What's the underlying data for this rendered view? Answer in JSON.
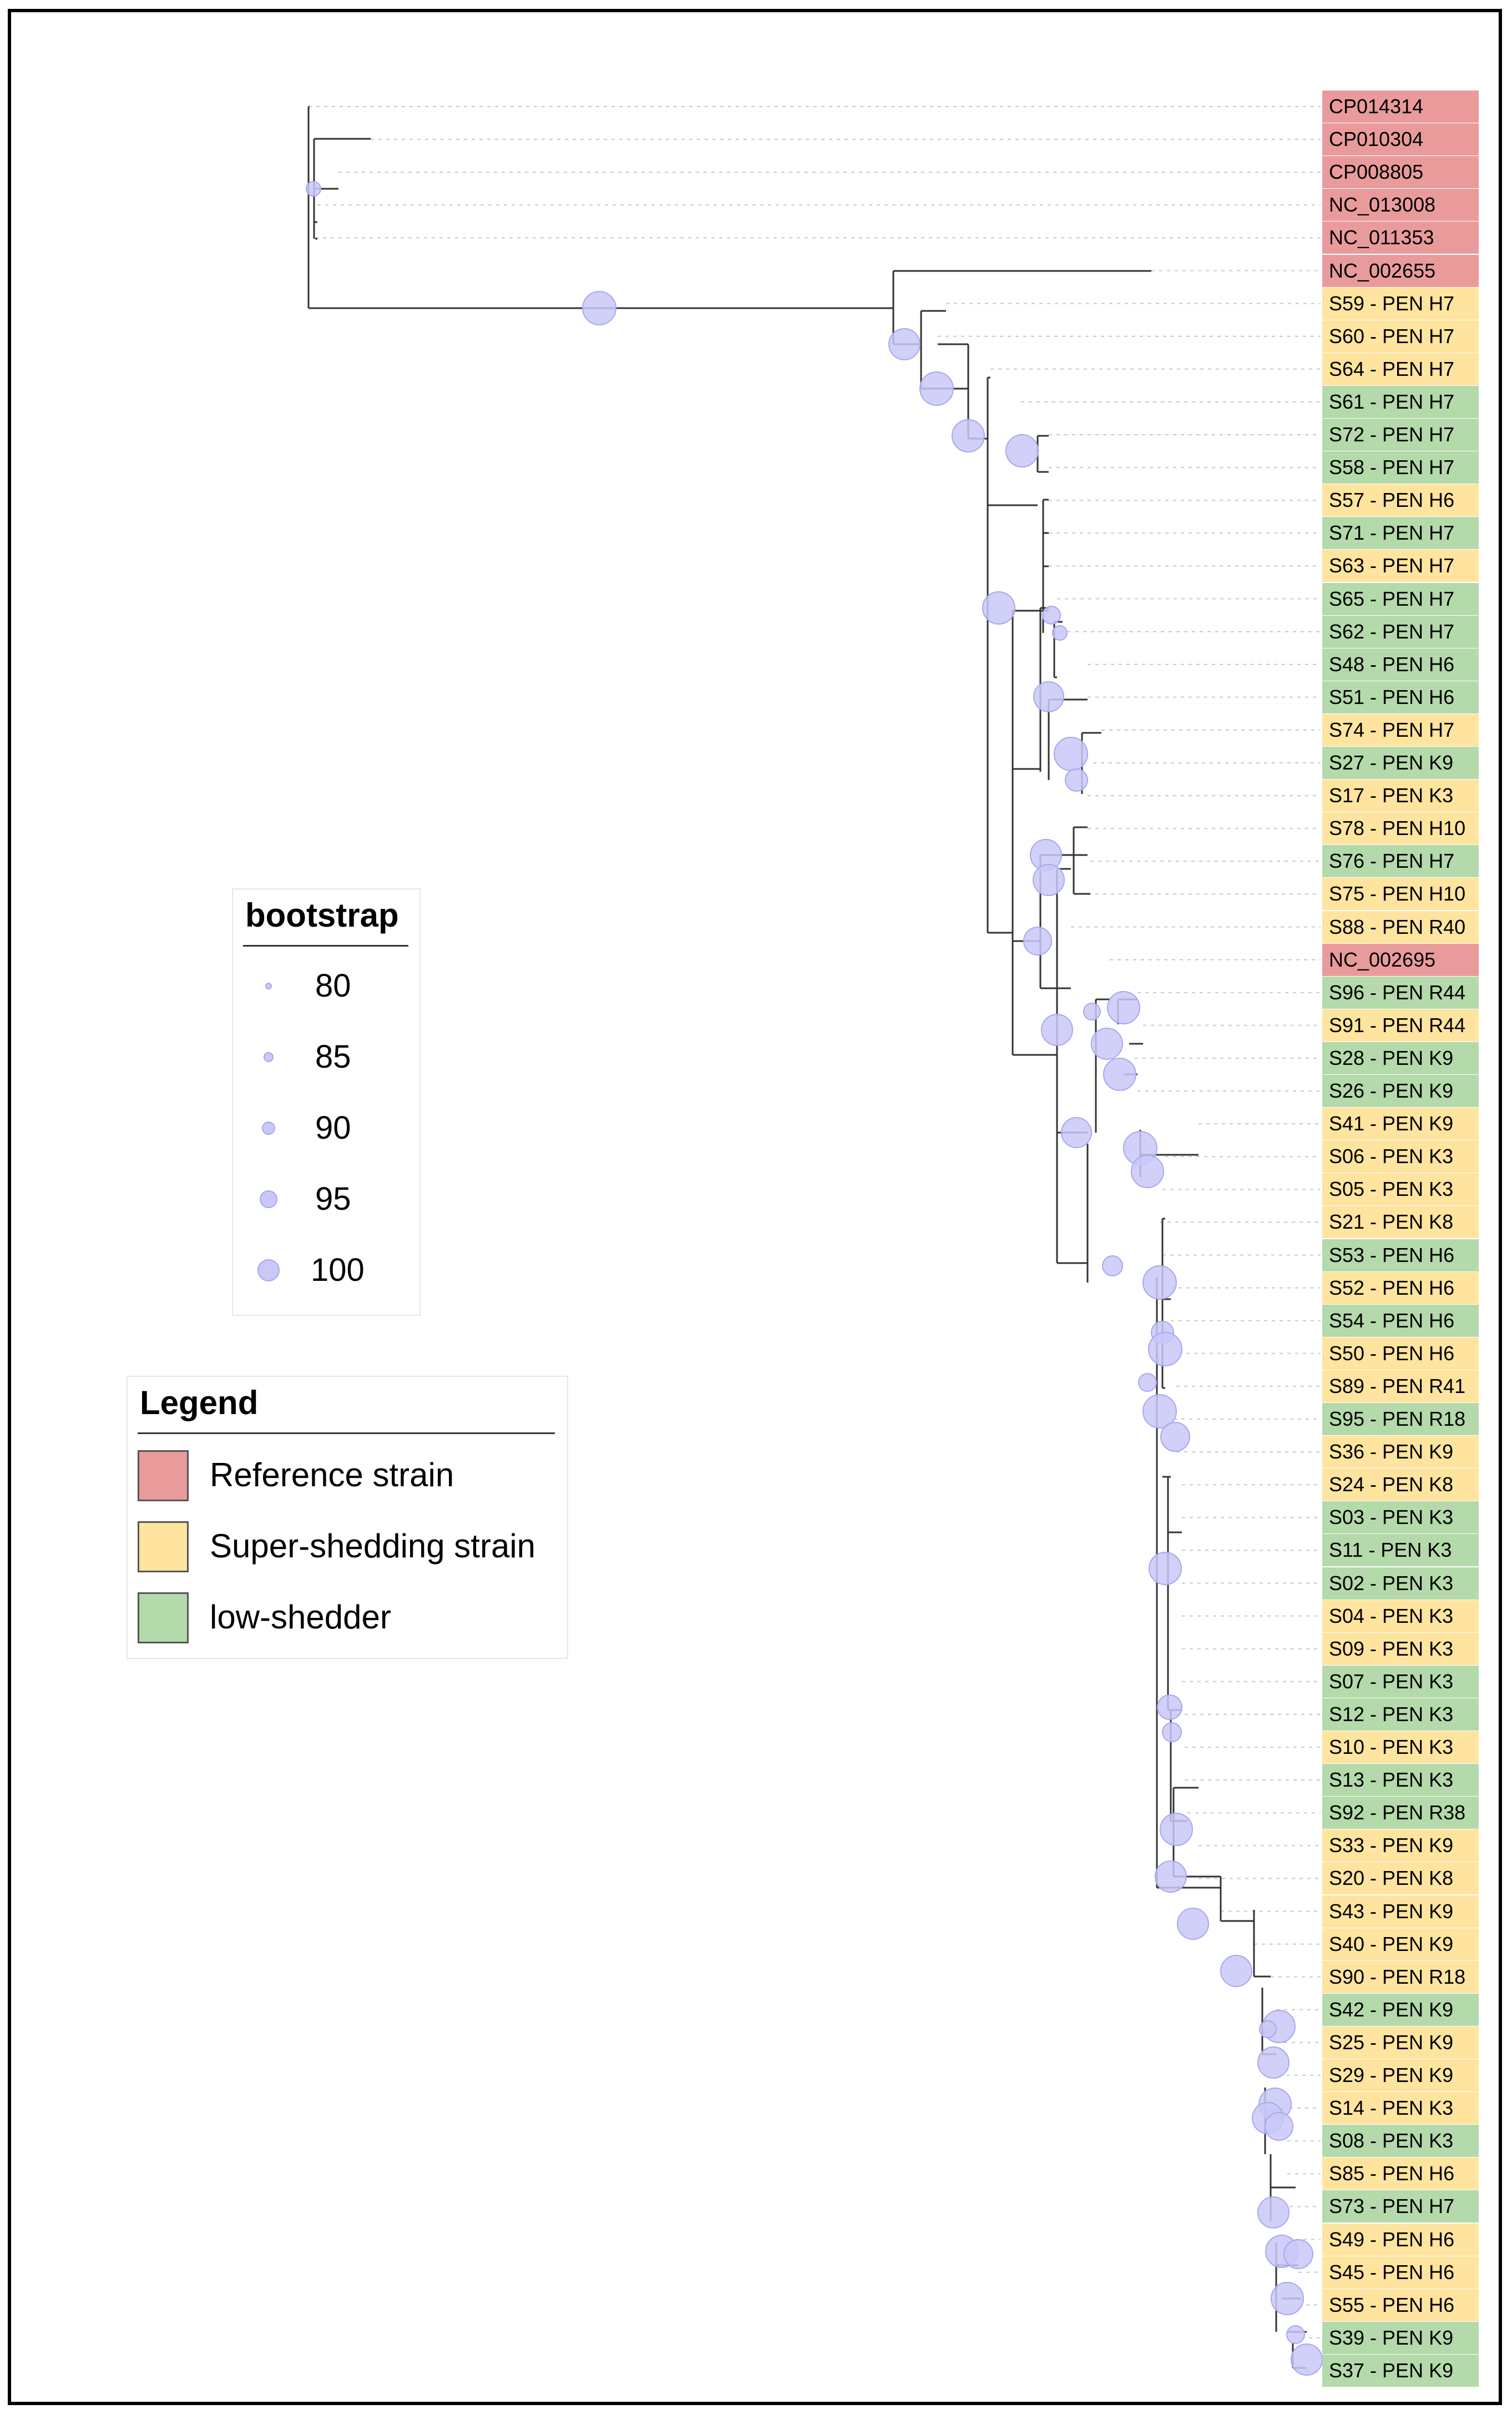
{
  "colors": {
    "reference": "#e99b9c",
    "super": "#fee49f",
    "low": "#b4d9aa",
    "node": "#c9c8f8",
    "node_stroke": "#a9a7ee",
    "branch": "#333333",
    "guide": "#c8c8c8"
  },
  "tips": [
    {
      "label": "CP014314",
      "cat": "reference"
    },
    {
      "label": "CP010304",
      "cat": "reference"
    },
    {
      "label": "CP008805",
      "cat": "reference"
    },
    {
      "label": "NC_013008",
      "cat": "reference"
    },
    {
      "label": "NC_011353",
      "cat": "reference"
    },
    {
      "label": "NC_002655",
      "cat": "reference"
    },
    {
      "label": "S59 - PEN H7",
      "cat": "super"
    },
    {
      "label": "S60 - PEN H7",
      "cat": "super"
    },
    {
      "label": "S64 - PEN H7",
      "cat": "super"
    },
    {
      "label": "S61 - PEN H7",
      "cat": "low"
    },
    {
      "label": "S72 - PEN H7",
      "cat": "low"
    },
    {
      "label": "S58 - PEN H7",
      "cat": "low"
    },
    {
      "label": "S57 - PEN H6",
      "cat": "super"
    },
    {
      "label": "S71 - PEN H7",
      "cat": "low"
    },
    {
      "label": "S63 - PEN H7",
      "cat": "super"
    },
    {
      "label": "S65 - PEN H7",
      "cat": "low"
    },
    {
      "label": "S62 - PEN H7",
      "cat": "low"
    },
    {
      "label": "S48 - PEN H6",
      "cat": "low"
    },
    {
      "label": "S51 - PEN H6",
      "cat": "low"
    },
    {
      "label": "S74 - PEN H7",
      "cat": "super"
    },
    {
      "label": "S27 - PEN K9",
      "cat": "low"
    },
    {
      "label": "S17 - PEN K3",
      "cat": "super"
    },
    {
      "label": "S78 - PEN H10",
      "cat": "super"
    },
    {
      "label": "S76 - PEN H7",
      "cat": "low"
    },
    {
      "label": "S75 - PEN H10",
      "cat": "super"
    },
    {
      "label": "S88 - PEN R40",
      "cat": "super"
    },
    {
      "label": "NC_002695",
      "cat": "reference"
    },
    {
      "label": "S96 - PEN R44",
      "cat": "low"
    },
    {
      "label": "S91 - PEN R44",
      "cat": "super"
    },
    {
      "label": "S28 - PEN K9",
      "cat": "low"
    },
    {
      "label": "S26 - PEN K9",
      "cat": "low"
    },
    {
      "label": "S41 - PEN K9",
      "cat": "super"
    },
    {
      "label": "S06 - PEN K3",
      "cat": "super"
    },
    {
      "label": "S05 - PEN K3",
      "cat": "super"
    },
    {
      "label": "S21 - PEN K8",
      "cat": "super"
    },
    {
      "label": "S53 - PEN H6",
      "cat": "low"
    },
    {
      "label": "S52 - PEN H6",
      "cat": "super"
    },
    {
      "label": "S54 - PEN H6",
      "cat": "low"
    },
    {
      "label": "S50 - PEN H6",
      "cat": "super"
    },
    {
      "label": "S89 - PEN R41",
      "cat": "super"
    },
    {
      "label": "S95 - PEN R18",
      "cat": "low"
    },
    {
      "label": "S36 - PEN K9",
      "cat": "super"
    },
    {
      "label": "S24 - PEN K8",
      "cat": "super"
    },
    {
      "label": "S03 - PEN K3",
      "cat": "low"
    },
    {
      "label": "S11 - PEN K3",
      "cat": "low"
    },
    {
      "label": "S02 - PEN K3",
      "cat": "low"
    },
    {
      "label": "S04 - PEN K3",
      "cat": "super"
    },
    {
      "label": "S09 - PEN K3",
      "cat": "super"
    },
    {
      "label": "S07 - PEN K3",
      "cat": "low"
    },
    {
      "label": "S12 - PEN K3",
      "cat": "low"
    },
    {
      "label": "S10 - PEN K3",
      "cat": "super"
    },
    {
      "label": "S13 - PEN K3",
      "cat": "low"
    },
    {
      "label": "S92 - PEN R38",
      "cat": "low"
    },
    {
      "label": "S33 - PEN K9",
      "cat": "super"
    },
    {
      "label": "S20 - PEN K8",
      "cat": "super"
    },
    {
      "label": "S43 - PEN K9",
      "cat": "super"
    },
    {
      "label": "S40 - PEN K9",
      "cat": "super"
    },
    {
      "label": "S90 - PEN R18",
      "cat": "super"
    },
    {
      "label": "S42 - PEN K9",
      "cat": "low"
    },
    {
      "label": "S25 - PEN K9",
      "cat": "super"
    },
    {
      "label": "S29 - PEN K9",
      "cat": "super"
    },
    {
      "label": "S14 - PEN K3",
      "cat": "super"
    },
    {
      "label": "S08 - PEN K3",
      "cat": "low"
    },
    {
      "label": "S85 - PEN H6",
      "cat": "super"
    },
    {
      "label": "S73 - PEN H7",
      "cat": "low"
    },
    {
      "label": "S49 - PEN H6",
      "cat": "super"
    },
    {
      "label": "S45 - PEN H6",
      "cat": "super"
    },
    {
      "label": "S55 - PEN H6",
      "cat": "super"
    },
    {
      "label": "S39 - PEN K9",
      "cat": "low"
    },
    {
      "label": "S37 - PEN K9",
      "cat": "low"
    }
  ],
  "bootstrap_legend": {
    "title": "bootstrap",
    "values": [
      "80",
      "85",
      "90",
      "95",
      "100"
    ]
  },
  "category_legend": {
    "title": "Legend",
    "items": [
      {
        "key": "reference",
        "label": "Reference strain"
      },
      {
        "key": "super",
        "label": "Super-shedding strain"
      },
      {
        "key": "low",
        "label": "low-shedder"
      }
    ]
  }
}
